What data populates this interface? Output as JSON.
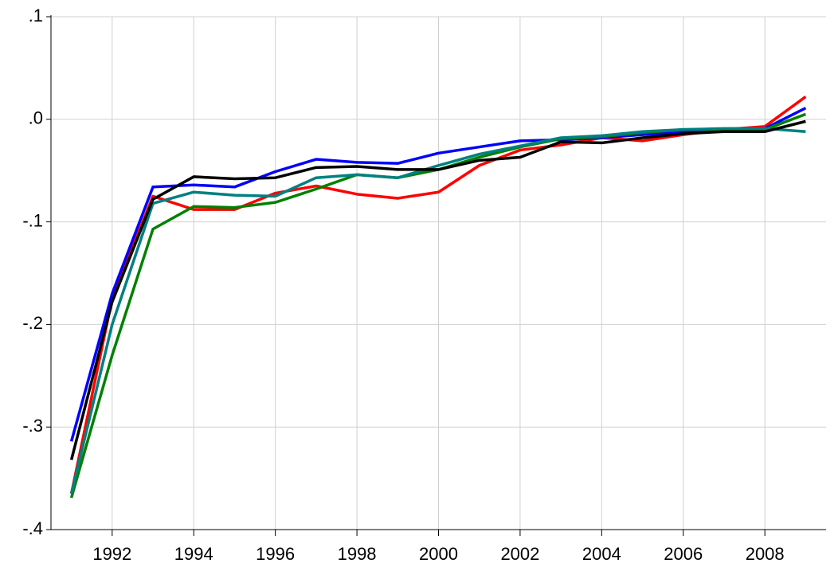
{
  "chart_data": {
    "type": "line",
    "x": [
      1991,
      1992,
      1993,
      1994,
      1995,
      1996,
      1997,
      1998,
      1999,
      2000,
      2001,
      2002,
      2003,
      2004,
      2005,
      2006,
      2007,
      2008,
      2009
    ],
    "series": [
      {
        "color": "#ff0000",
        "values": [
          -0.365,
          -0.175,
          -0.075,
          -0.088,
          -0.088,
          -0.072,
          -0.065,
          -0.073,
          -0.077,
          -0.071,
          -0.045,
          -0.03,
          -0.025,
          -0.018,
          -0.021,
          -0.015,
          -0.01,
          -0.007,
          0.022
        ]
      },
      {
        "color": "#0000ff",
        "values": [
          -0.314,
          -0.17,
          -0.066,
          -0.064,
          -0.066,
          -0.051,
          -0.039,
          -0.042,
          -0.043,
          -0.033,
          -0.027,
          -0.021,
          -0.02,
          -0.018,
          -0.015,
          -0.012,
          -0.01,
          -0.009,
          0.011
        ]
      },
      {
        "color": "#008000",
        "values": [
          -0.369,
          -0.23,
          -0.107,
          -0.085,
          -0.086,
          -0.081,
          -0.068,
          -0.054,
          -0.057,
          -0.049,
          -0.037,
          -0.027,
          -0.019,
          -0.017,
          -0.013,
          -0.01,
          -0.01,
          -0.01,
          0.005
        ]
      },
      {
        "color": "#008080",
        "values": [
          -0.365,
          -0.2,
          -0.082,
          -0.071,
          -0.074,
          -0.075,
          -0.057,
          -0.054,
          -0.057,
          -0.045,
          -0.034,
          -0.026,
          -0.018,
          -0.016,
          -0.012,
          -0.01,
          -0.009,
          -0.009,
          -0.012
        ]
      },
      {
        "color": "#000000",
        "values": [
          -0.332,
          -0.178,
          -0.078,
          -0.056,
          -0.058,
          -0.057,
          -0.047,
          -0.046,
          -0.049,
          -0.049,
          -0.04,
          -0.037,
          -0.022,
          -0.023,
          -0.018,
          -0.014,
          -0.012,
          -0.012,
          -0.002
        ]
      }
    ],
    "xlim": [
      1990.5,
      2009.5
    ],
    "xticks": [
      1992,
      1994,
      1996,
      1998,
      2000,
      2002,
      2004,
      2006,
      2008
    ],
    "ylim": [
      -0.4,
      0.1
    ],
    "yticks": [
      {
        "value": -0.4,
        "label": "-.4"
      },
      {
        "value": -0.3,
        "label": "-.3"
      },
      {
        "value": -0.2,
        "label": "-.2"
      },
      {
        "value": -0.1,
        "label": "-.1"
      },
      {
        "value": 0,
        "label": ".0"
      },
      {
        "value": 0.1,
        "label": ".1"
      }
    ],
    "grid": true
  }
}
